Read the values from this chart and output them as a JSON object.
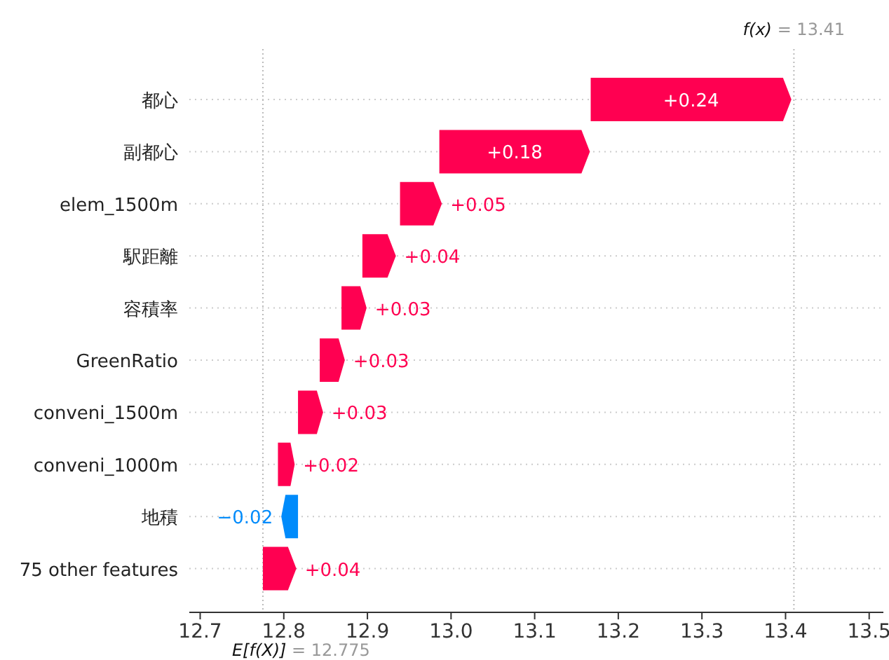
{
  "chart_data": {
    "type": "bar",
    "orientation": "horizontal",
    "categories": [
      "都心",
      "副都心",
      "elem_1500m",
      "駅距離",
      "容積率",
      "GreenRatio",
      "conveni_1500m",
      "conveni_1000m",
      "地積",
      "75 other features"
    ],
    "values": [
      0.24,
      0.18,
      0.05,
      0.04,
      0.03,
      0.03,
      0.03,
      0.02,
      -0.02,
      0.04
    ],
    "base": [
      13.167,
      12.986,
      12.939,
      12.894,
      12.869,
      12.843,
      12.817,
      12.793,
      12.817,
      12.775
    ],
    "colors": [
      "#ff0051",
      "#ff0051",
      "#ff0051",
      "#ff0051",
      "#ff0051",
      "#ff0051",
      "#ff0051",
      "#ff0051",
      "#008bfb",
      "#ff0051"
    ],
    "value_labels": [
      "+0.24",
      "+0.18",
      "+0.05",
      "+0.04",
      "+0.03",
      "+0.03",
      "+0.03",
      "+0.02",
      "−0.02",
      "+0.04"
    ],
    "xlim": [
      12.687,
      13.517
    ],
    "xticks": [
      12.7,
      12.8,
      12.9,
      {
        "value": 13.0,
        "label": "13.0"
      },
      13.1,
      13.2,
      13.3,
      13.4,
      13.5
    ],
    "grid": "y",
    "ref_lines": [
      {
        "axis": "x",
        "value": 13.41,
        "label": "f(x) = 13.41"
      },
      {
        "axis": "x",
        "value": 12.775,
        "label": "E[f(X)] = 12.775"
      }
    ]
  }
}
